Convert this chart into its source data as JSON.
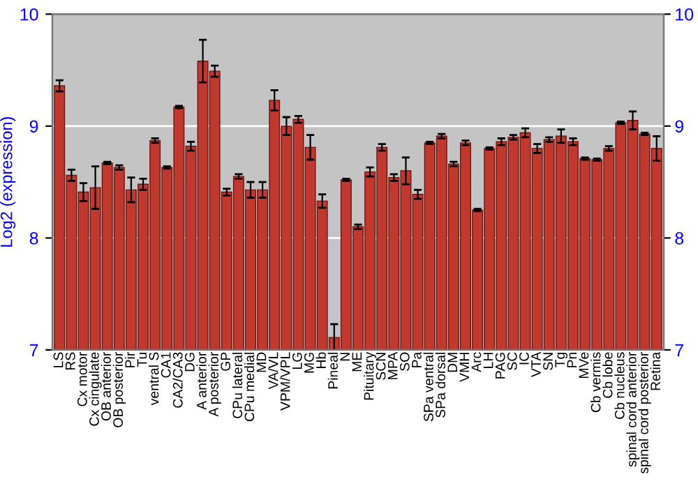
{
  "chart_data": {
    "type": "bar",
    "ylabel": "Log2 (expression)",
    "categories": [
      "LS",
      "RS",
      "Cx motor",
      "Cx cingulate",
      "OB anterior",
      "OB posterior",
      "Pir",
      "Tu",
      "ventral S",
      "CA1",
      "CA2/CA3",
      "DG",
      "A anterior",
      "A posterior",
      "GP",
      "CPu lateral",
      "CPu medial",
      "MD",
      "VA/VL",
      "VPM/VPL",
      "LG",
      "MG",
      "Hb",
      "Pineal",
      "N",
      "ME",
      "Pituitary",
      "SCN",
      "MPA",
      "SO",
      "Pa",
      "SPa ventral",
      "SPa dorsal",
      "DM",
      "VMH",
      "Arc",
      "LH",
      "PAG",
      "SC",
      "IC",
      "VTA",
      "SN",
      "Tg",
      "Pn",
      "MVe",
      "Cb vermis",
      "Cb lobe",
      "Cb nucleus",
      "spinal cord anterior",
      "spinal cord posterior",
      "Retina"
    ],
    "values": [
      9.36,
      8.56,
      8.41,
      8.45,
      8.67,
      8.63,
      8.43,
      8.48,
      8.87,
      8.63,
      9.17,
      8.82,
      9.58,
      9.49,
      8.41,
      8.55,
      8.43,
      8.43,
      9.23,
      9.0,
      9.06,
      8.81,
      8.33,
      7.11,
      8.52,
      8.1,
      8.59,
      8.81,
      8.54,
      8.6,
      8.39,
      8.85,
      8.91,
      8.66,
      8.85,
      8.25,
      8.8,
      8.86,
      8.9,
      8.94,
      8.8,
      8.88,
      8.91,
      8.86,
      8.71,
      8.7,
      8.8,
      9.03,
      9.05,
      8.93,
      8.8
    ],
    "errors": [
      0.05,
      0.05,
      0.08,
      0.19,
      0.01,
      0.02,
      0.11,
      0.05,
      0.02,
      0.01,
      0.01,
      0.04,
      0.19,
      0.05,
      0.03,
      0.02,
      0.07,
      0.07,
      0.09,
      0.08,
      0.03,
      0.11,
      0.06,
      0.12,
      0.01,
      0.02,
      0.04,
      0.03,
      0.03,
      0.12,
      0.04,
      0.01,
      0.02,
      0.02,
      0.02,
      0.01,
      0.01,
      0.03,
      0.02,
      0.04,
      0.04,
      0.02,
      0.06,
      0.03,
      0.01,
      0.01,
      0.02,
      0.01,
      0.08,
      0.01,
      0.11
    ],
    "color": "#c0392f",
    "ylim": [
      7,
      10
    ],
    "yticks": [
      7,
      8,
      9,
      10
    ],
    "y2lim": [
      7,
      10
    ],
    "y2ticks": [
      7,
      8,
      9,
      10
    ],
    "grid": "y"
  }
}
